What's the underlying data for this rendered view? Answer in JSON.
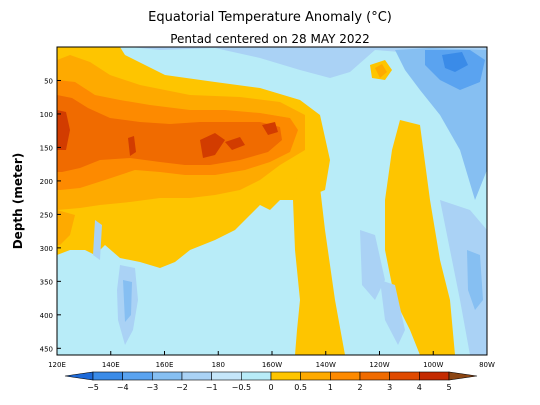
{
  "chart_data": {
    "type": "heatmap",
    "title": "Equatorial Temperature Anomaly (°C)",
    "subtitle": "Pentad centered on 28 MAY 2022",
    "ylabel": "Depth (meter)",
    "xlabel": "",
    "x_range_lon_east": [
      120,
      280
    ],
    "y_range_depth_m": [
      0,
      460
    ],
    "y_reversed": true,
    "x_ticks": [
      {
        "lon": 120,
        "label": "120E"
      },
      {
        "lon": 140,
        "label": "140E"
      },
      {
        "lon": 160,
        "label": "160E"
      },
      {
        "lon": 180,
        "label": "180"
      },
      {
        "lon": 200,
        "label": "160W"
      },
      {
        "lon": 220,
        "label": "140W"
      },
      {
        "lon": 240,
        "label": "120W"
      },
      {
        "lon": 260,
        "label": "100W"
      },
      {
        "lon": 280,
        "label": "80W"
      }
    ],
    "y_ticks": [
      {
        "depth": 50,
        "label": "50"
      },
      {
        "depth": 100,
        "label": "100"
      },
      {
        "depth": 150,
        "label": "150"
      },
      {
        "depth": 200,
        "label": "200"
      },
      {
        "depth": 250,
        "label": "250"
      },
      {
        "depth": 300,
        "label": "300"
      },
      {
        "depth": 350,
        "label": "350"
      },
      {
        "depth": 400,
        "label": "400"
      },
      {
        "depth": 450,
        "label": "450"
      }
    ],
    "colorbar": {
      "labels": [
        "−5",
        "−4",
        "−3",
        "−2",
        "−1",
        "−0.5",
        "0",
        "0.5",
        "1",
        "2",
        "3",
        "4",
        "5"
      ],
      "colors": [
        "#1e6ad8",
        "#3a8be8",
        "#5aa3f0",
        "#86bff2",
        "#aad2f5",
        "#c5e6fa",
        "#b8ecf8",
        "#fec500",
        "#feaa00",
        "#fd8a00",
        "#f06b00",
        "#e04a00",
        "#c42a00",
        "#8b4513"
      ],
      "extend": "both"
    },
    "regions": [
      {
        "id": "bg",
        "level": "0 to -0.5",
        "color": "#b8ecf8"
      },
      {
        "id": "warm-pos",
        "level": "0 to 0.5",
        "color": "#fec500"
      },
      {
        "id": "warm-05",
        "level": "0.5 to 1",
        "color": "#feaa00"
      },
      {
        "id": "warm-1",
        "level": "1 to 2",
        "color": "#fd8a00"
      },
      {
        "id": "warm-2",
        "level": "2 to 3",
        "color": "#f06b00"
      },
      {
        "id": "warm-3",
        "level": "3 to 4",
        "color": "#d23c00"
      },
      {
        "id": "cold-05",
        "level": "-0.5 to -1",
        "color": "#aad2f5"
      },
      {
        "id": "cold-1",
        "level": "-1 to -2",
        "color": "#86bff2"
      },
      {
        "id": "cold-2",
        "level": "-2 to -3",
        "color": "#5aa3f0"
      },
      {
        "id": "cold-3",
        "level": "-3 to -4",
        "color": "#3a8be8"
      }
    ]
  }
}
